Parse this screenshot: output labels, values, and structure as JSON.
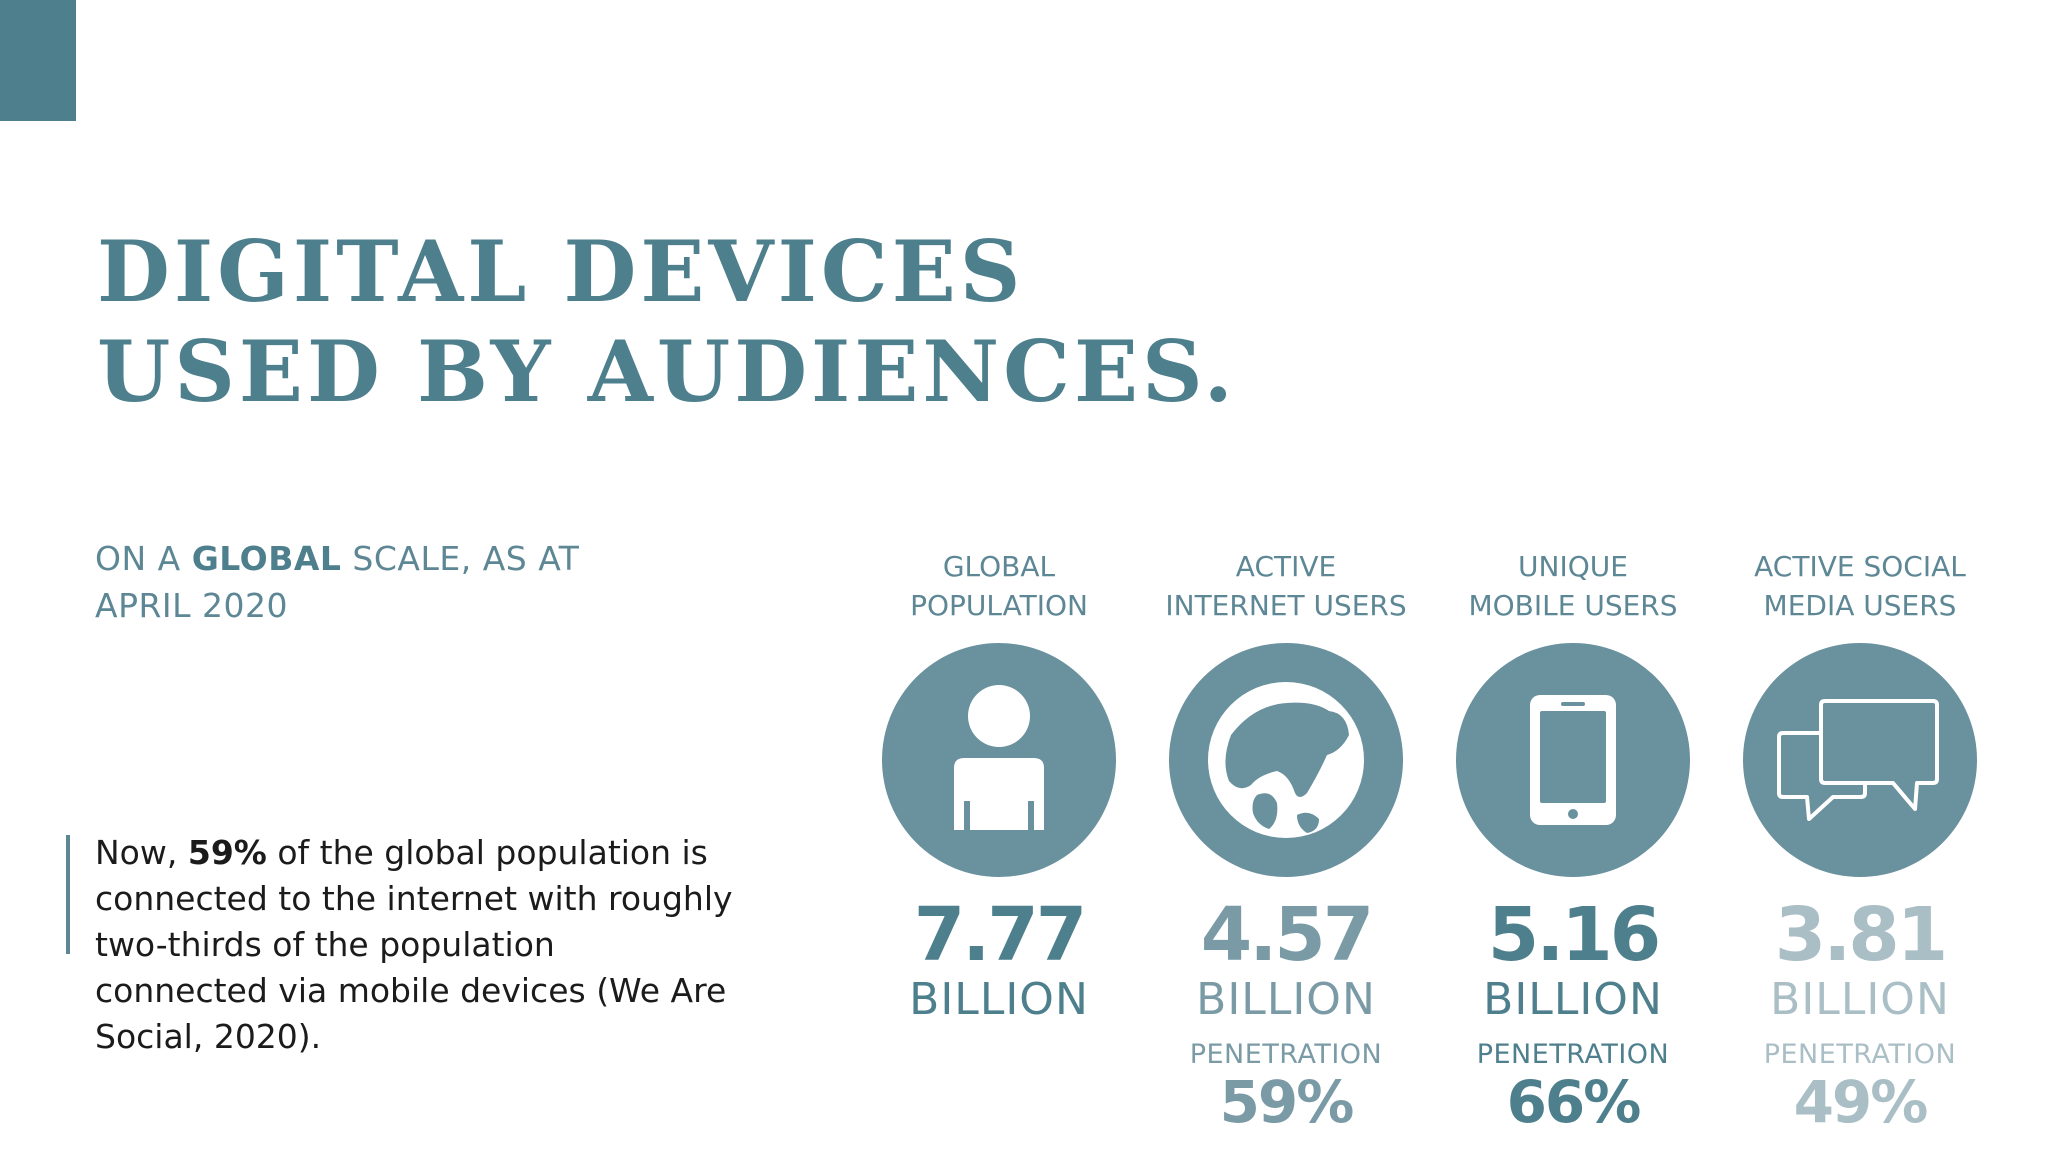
{
  "title": {
    "line1": "DIGITAL DEVICES",
    "line2": "USED BY AUDIENCES."
  },
  "subtitle": {
    "prefix": "ON A ",
    "emphasis": "GLOBAL",
    "suffix": " SCALE, AS AT",
    "line2": "APRIL 2020"
  },
  "quote": {
    "prefix": "Now, ",
    "emphasis": "59%",
    "rest": " of the global population is connected to the internet with roughly two-thirds of the population connected via mobile devices (We Are Social, 2020)."
  },
  "stats": [
    {
      "label1": "GLOBAL",
      "label2": "POPULATION",
      "icon": "person-icon",
      "value": "7.77",
      "unit": "BILLION",
      "penetration_label": "",
      "penetration": ""
    },
    {
      "label1": "ACTIVE",
      "label2": "INTERNET USERS",
      "icon": "globe-icon",
      "value": "4.57",
      "unit": "BILLION",
      "penetration_label": "PENETRATION",
      "penetration": "59%"
    },
    {
      "label1": "UNIQUE",
      "label2": "MOBILE USERS",
      "icon": "mobile-phone-icon",
      "value": "5.16",
      "unit": "BILLION",
      "penetration_label": "PENETRATION",
      "penetration": "66%"
    },
    {
      "label1": "ACTIVE SOCIAL",
      "label2": "MEDIA USERS",
      "icon": "chat-bubbles-icon",
      "value": "3.81",
      "unit": "BILLION",
      "penetration_label": "PENETRATION",
      "penetration": "49%"
    }
  ],
  "colors": {
    "accent": "#4e7f8d",
    "circle": "#6a919e",
    "stat_internet": "#7a9ba6",
    "stat_mobile": "#4e7f8d",
    "stat_social": "#a9bec5"
  }
}
